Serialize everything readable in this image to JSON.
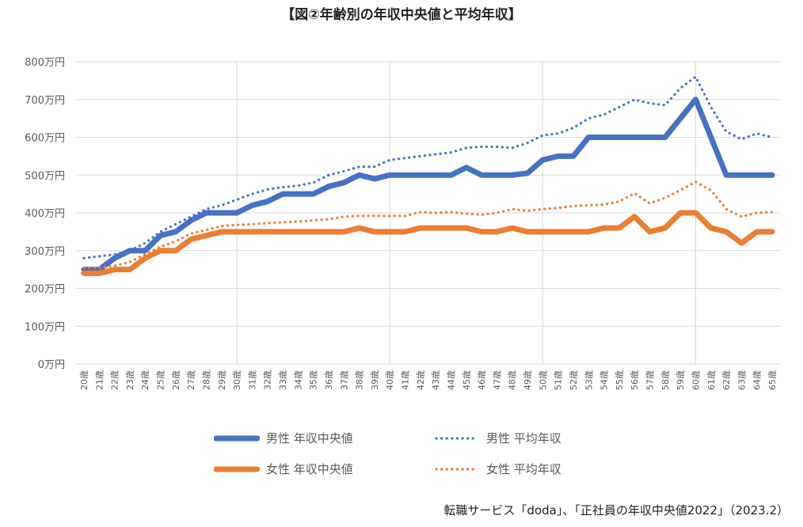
{
  "chart_data": {
    "type": "line",
    "title": "【図②年齢別の年収中央値と平均年収】",
    "xlabel": "",
    "ylabel": "",
    "ylim": [
      0,
      800
    ],
    "yticks": [
      0,
      100,
      200,
      300,
      400,
      500,
      600,
      700,
      800
    ],
    "ytick_suffix": "万円",
    "x": [
      20,
      21,
      22,
      23,
      24,
      25,
      26,
      27,
      28,
      29,
      30,
      31,
      32,
      33,
      34,
      35,
      36,
      37,
      38,
      39,
      40,
      41,
      42,
      43,
      44,
      45,
      46,
      47,
      48,
      49,
      50,
      51,
      52,
      53,
      54,
      55,
      56,
      57,
      58,
      59,
      60,
      61,
      62,
      63,
      64,
      65
    ],
    "x_suffix": "歳",
    "grid": true,
    "legend_placement": "bottom",
    "series": [
      {
        "name": "男性 年収中央値",
        "color": "#4472C4",
        "style": "solid",
        "values": [
          250,
          250,
          280,
          300,
          300,
          340,
          350,
          380,
          400,
          400,
          400,
          420,
          430,
          450,
          450,
          450,
          470,
          480,
          500,
          490,
          500,
          500,
          500,
          500,
          500,
          520,
          500,
          500,
          500,
          505,
          540,
          550,
          550,
          600,
          600,
          600,
          600,
          600,
          600,
          650,
          700,
          600,
          500,
          500,
          500,
          500
        ]
      },
      {
        "name": "男性 平均年収",
        "color": "#4472C4",
        "style": "dotted",
        "values": [
          280,
          285,
          290,
          300,
          320,
          350,
          370,
          390,
          410,
          420,
          435,
          450,
          462,
          468,
          472,
          480,
          500,
          510,
          522,
          522,
          540,
          545,
          550,
          555,
          560,
          572,
          575,
          575,
          572,
          585,
          605,
          610,
          625,
          650,
          660,
          680,
          700,
          690,
          685,
          730,
          760,
          680,
          615,
          595,
          610,
          600
        ]
      },
      {
        "name": "女性 年収中央値",
        "color": "#ED7D31",
        "style": "solid",
        "values": [
          240,
          240,
          250,
          250,
          280,
          300,
          300,
          330,
          340,
          350,
          350,
          350,
          350,
          350,
          350,
          350,
          350,
          350,
          360,
          350,
          350,
          350,
          360,
          360,
          360,
          360,
          350,
          350,
          360,
          350,
          350,
          350,
          350,
          350,
          360,
          360,
          390,
          350,
          360,
          400,
          400,
          360,
          350,
          320,
          350,
          350
        ]
      },
      {
        "name": "女性 平均年収",
        "color": "#ED7D31",
        "style": "dotted",
        "values": [
          255,
          255,
          260,
          270,
          290,
          310,
          325,
          345,
          355,
          365,
          368,
          370,
          373,
          375,
          377,
          380,
          383,
          390,
          392,
          392,
          392,
          392,
          402,
          400,
          402,
          398,
          395,
          400,
          410,
          405,
          410,
          413,
          418,
          420,
          422,
          430,
          452,
          425,
          440,
          460,
          482,
          460,
          410,
          390,
          400,
          402
        ]
      }
    ]
  },
  "source": "転職サービス「doda」、「正社員の年収中央値2022」（2023.2）"
}
